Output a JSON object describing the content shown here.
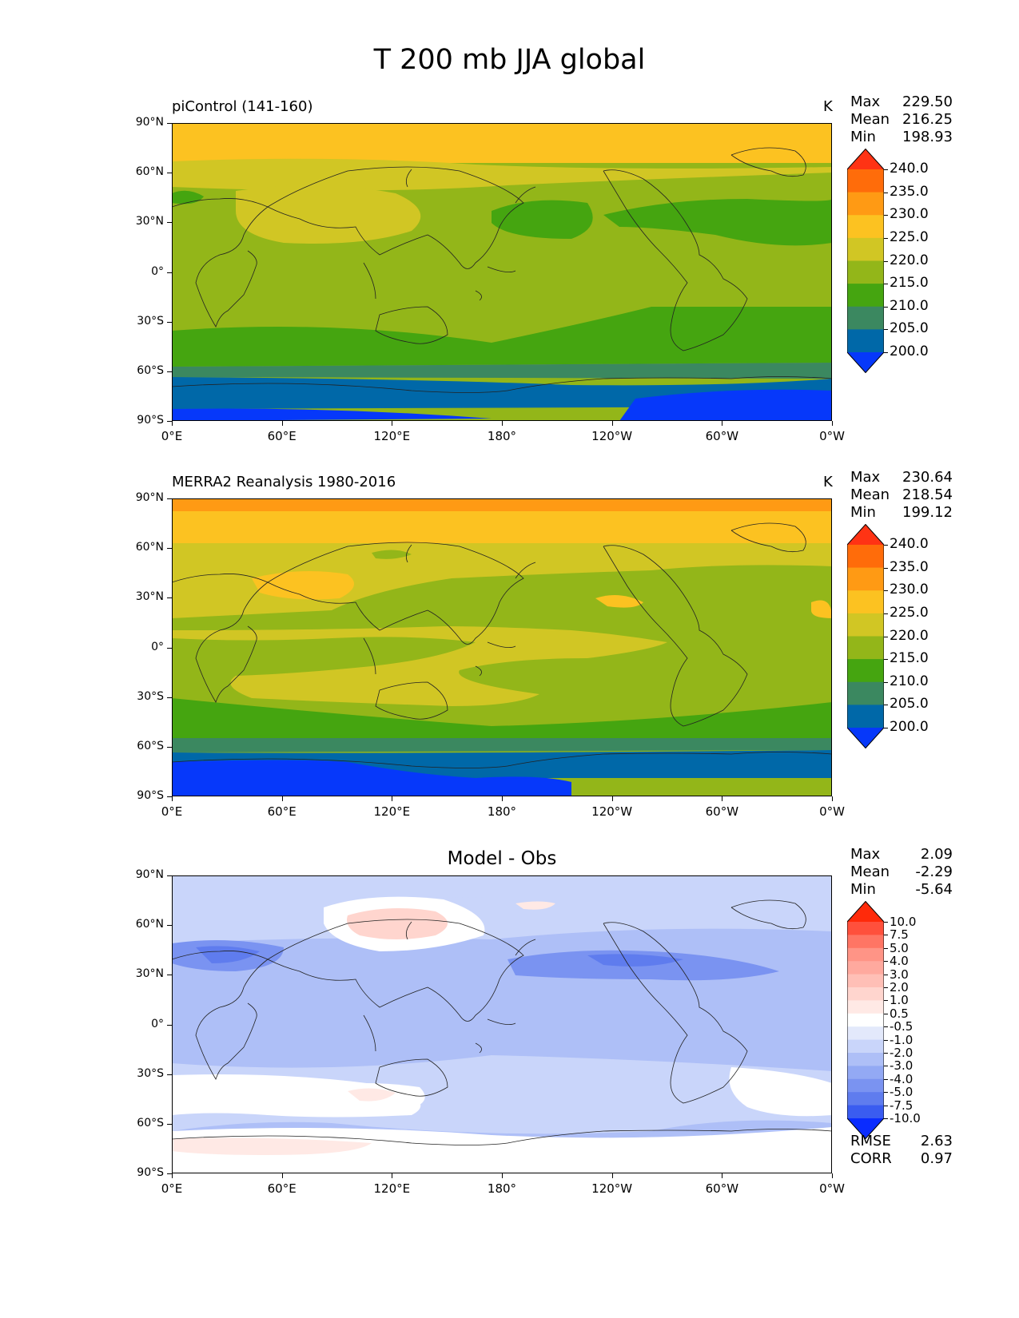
{
  "figure_title": "T 200 mb JJA global",
  "panels": [
    {
      "subtitle": "piControl (141-160)",
      "unit": "K",
      "stats": [
        {
          "label": "Max",
          "value": "229.50"
        },
        {
          "label": "Mean",
          "value": "216.25"
        },
        {
          "label": "Min",
          "value": "198.93"
        }
      ],
      "colorbar": {
        "levels": [
          "240.0",
          "235.0",
          "230.0",
          "225.0",
          "220.0",
          "215.0",
          "210.0",
          "205.0",
          "200.0"
        ],
        "colors": [
          "#ff3314",
          "#ff6c0a",
          "#ff9a14",
          "#fcc221",
          "#d1c624",
          "#93b619",
          "#45a510",
          "#3b8860",
          "#0068a8",
          "#0638fa"
        ]
      }
    },
    {
      "subtitle": "MERRA2 Reanalysis 1980-2016",
      "unit": "K",
      "stats": [
        {
          "label": "Max",
          "value": "230.64"
        },
        {
          "label": "Mean",
          "value": "218.54"
        },
        {
          "label": "Min",
          "value": "199.12"
        }
      ],
      "colorbar": {
        "levels": [
          "240.0",
          "235.0",
          "230.0",
          "225.0",
          "220.0",
          "215.0",
          "210.0",
          "205.0",
          "200.0"
        ],
        "colors": [
          "#ff3314",
          "#ff6c0a",
          "#ff9a14",
          "#fcc221",
          "#d1c624",
          "#93b619",
          "#45a510",
          "#3b8860",
          "#0068a8",
          "#0638fa"
        ]
      }
    },
    {
      "subtitle": "Model - Obs",
      "unit": "",
      "stats": [
        {
          "label": "Max",
          "value": "2.09"
        },
        {
          "label": "Mean",
          "value": "-2.29"
        },
        {
          "label": "Min",
          "value": "-5.64"
        }
      ],
      "bottom_stats": [
        {
          "label": "RMSE",
          "value": "2.63"
        },
        {
          "label": "CORR",
          "value": "0.97"
        }
      ],
      "colorbar": {
        "levels": [
          "10.0",
          "7.5",
          "5.0",
          "4.0",
          "3.0",
          "2.0",
          "1.0",
          "0.5",
          "-0.5",
          "-1.0",
          "-2.0",
          "-3.0",
          "-4.0",
          "-5.0",
          "-7.5",
          "-10.0"
        ],
        "colors": [
          "#ff2a0a",
          "#ff503c",
          "#ff7564",
          "#ff9486",
          "#ffa99e",
          "#ffbfb6",
          "#ffd5ce",
          "#ffe9e5",
          "#ffffff",
          "#e3e9fb",
          "#c9d5fa",
          "#aebff7",
          "#93a9f4",
          "#7a93f1",
          "#5f7cee",
          "#3a5cf0",
          "#0a2cff"
        ]
      }
    }
  ],
  "y_ticks": [
    "90°N",
    "60°N",
    "30°N",
    "0°",
    "30°S",
    "60°S",
    "90°S"
  ],
  "x_ticks": [
    "0°E",
    "60°E",
    "120°E",
    "180°",
    "120°W",
    "60°W",
    "0°W"
  ]
}
